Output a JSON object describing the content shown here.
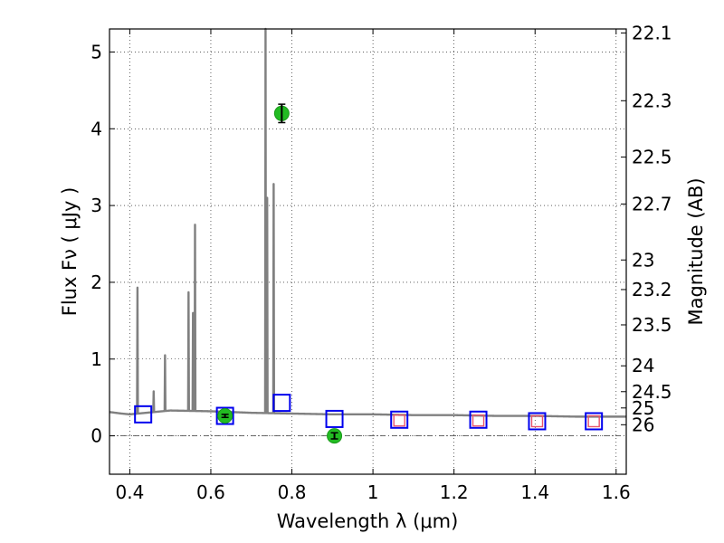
{
  "chart_data": {
    "type": "scatter",
    "xlabel": "Wavelength  λ (μm)",
    "ylabel": "Flux  Fν  ( μJy )",
    "y2label": "Magnitude (AB)",
    "xlim": [
      0.35,
      1.625
    ],
    "ylim": [
      -0.5,
      5.3
    ],
    "grid": true,
    "x_ticks": [
      0.4,
      0.6,
      0.8,
      1.0,
      1.2,
      1.4,
      1.6
    ],
    "x_tick_labels": [
      "0.4",
      "0.6",
      "0.8",
      "1",
      "1.2",
      "1.4",
      "1.6"
    ],
    "y_ticks": [
      0,
      1,
      2,
      3,
      4,
      5
    ],
    "y_tick_labels": [
      "0",
      "1",
      "2",
      "3",
      "4",
      "5"
    ],
    "mag_ticks": [
      "22.1",
      "22.3",
      "22.5",
      "22.7",
      "23",
      "23.2",
      "23.5",
      "24",
      "24.5",
      "25",
      "26"
    ],
    "observed_photometry": [
      {
        "x": 0.635,
        "y": 0.26,
        "err": 0.02
      },
      {
        "x": 0.775,
        "y": 4.2,
        "err": 0.12
      },
      {
        "x": 0.905,
        "y": 0.0,
        "err": 0.04
      }
    ],
    "model_photometry_blue_squares": [
      {
        "x": 0.433,
        "y": 0.28
      },
      {
        "x": 0.635,
        "y": 0.26
      },
      {
        "x": 0.775,
        "y": 0.43
      },
      {
        "x": 0.905,
        "y": 0.22
      },
      {
        "x": 1.065,
        "y": 0.21
      },
      {
        "x": 1.26,
        "y": 0.21
      },
      {
        "x": 1.405,
        "y": 0.19
      },
      {
        "x": 1.545,
        "y": 0.19
      }
    ],
    "red_squares": [
      {
        "x": 1.065,
        "y": 0.2
      },
      {
        "x": 1.26,
        "y": 0.2
      },
      {
        "x": 1.405,
        "y": 0.19
      },
      {
        "x": 1.545,
        "y": 0.19
      }
    ],
    "spectrum_continuum": [
      [
        0.35,
        0.31
      ],
      [
        0.38,
        0.29
      ],
      [
        0.4,
        0.28
      ],
      [
        0.5,
        0.33
      ],
      [
        0.6,
        0.32
      ],
      [
        0.7,
        0.3
      ],
      [
        0.8,
        0.29
      ],
      [
        0.9,
        0.28
      ],
      [
        1.0,
        0.28
      ],
      [
        1.1,
        0.27
      ],
      [
        1.2,
        0.27
      ],
      [
        1.3,
        0.26
      ],
      [
        1.4,
        0.26
      ],
      [
        1.5,
        0.25
      ],
      [
        1.625,
        0.25
      ]
    ],
    "spectrum_lines": [
      {
        "x": 0.419,
        "peak": 1.93
      },
      {
        "x": 0.459,
        "peak": 0.58
      },
      {
        "x": 0.487,
        "peak": 1.05
      },
      {
        "x": 0.545,
        "peak": 1.87
      },
      {
        "x": 0.556,
        "peak": 1.6
      },
      {
        "x": 0.561,
        "peak": 2.75
      },
      {
        "x": 0.735,
        "peak": 5.3
      },
      {
        "x": 0.739,
        "peak": 3.1
      },
      {
        "x": 0.755,
        "peak": 3.28
      }
    ]
  }
}
